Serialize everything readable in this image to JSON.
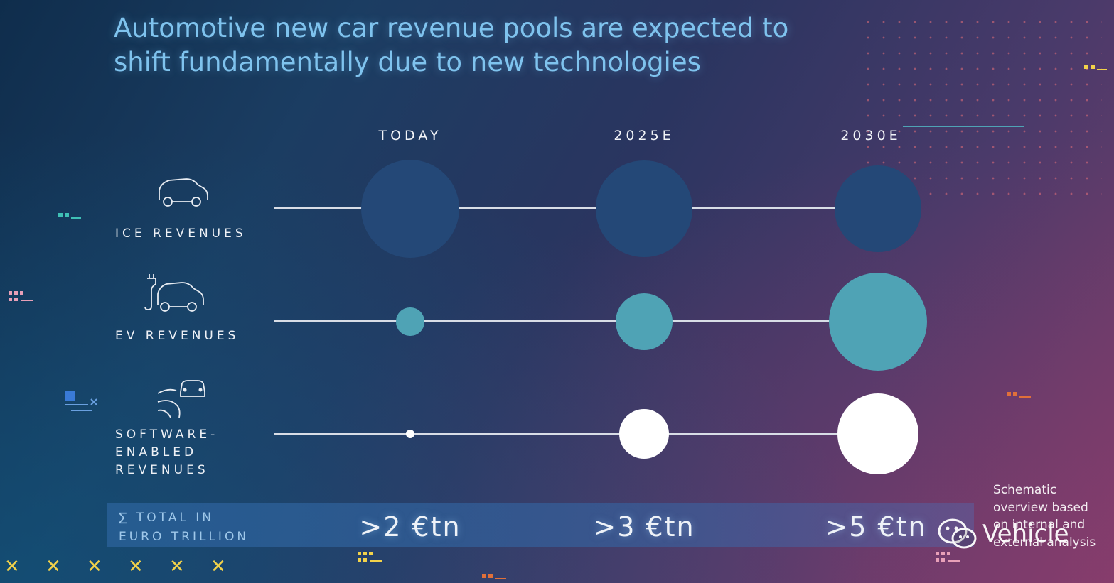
{
  "title": "Automotive new car revenue pools are expected to shift fundamentally due to new technologies",
  "columns": [
    "TODAY",
    "2025E",
    "2030E"
  ],
  "rows": [
    {
      "label_lines": [
        "ICE REVENUES"
      ],
      "icon": "ice-car-icon"
    },
    {
      "label_lines": [
        "EV REVENUES"
      ],
      "icon": "ev-car-icon"
    },
    {
      "label_lines": [
        "SOFTWARE-",
        "ENABLED",
        "REVENUES"
      ],
      "icon": "connected-car-icon"
    }
  ],
  "chart_data": {
    "type": "bubble",
    "categories": [
      "TODAY",
      "2025E",
      "2030E"
    ],
    "series": [
      {
        "name": "ICE REVENUES",
        "values": [
          1.0,
          0.96,
          0.78
        ],
        "color": "#244877"
      },
      {
        "name": "EV REVENUES",
        "values": [
          0.08,
          0.34,
          1.0
        ],
        "color": "#4fa3b5"
      },
      {
        "name": "SOFTWARE-ENABLED REVENUES",
        "values": [
          0.005,
          0.26,
          0.68
        ],
        "color": "#ffffff"
      }
    ]
  },
  "total": {
    "label_lines": [
      "∑ TOTAL IN",
      "EURO TRILLION"
    ],
    "values": [
      ">2 €tn",
      ">3 €tn",
      ">5 €tn"
    ]
  },
  "note_lines": [
    "Schematic",
    "overview based",
    "on internal and",
    "external analysis"
  ],
  "watermark": {
    "text": "Vehicle",
    "icon": "wechat-icon"
  },
  "colors": {
    "title": "#7fc3ee",
    "ice": "#244877",
    "ev": "#4fa3b5",
    "software": "#ffffff",
    "accent_yellow": "#f2d24a"
  }
}
